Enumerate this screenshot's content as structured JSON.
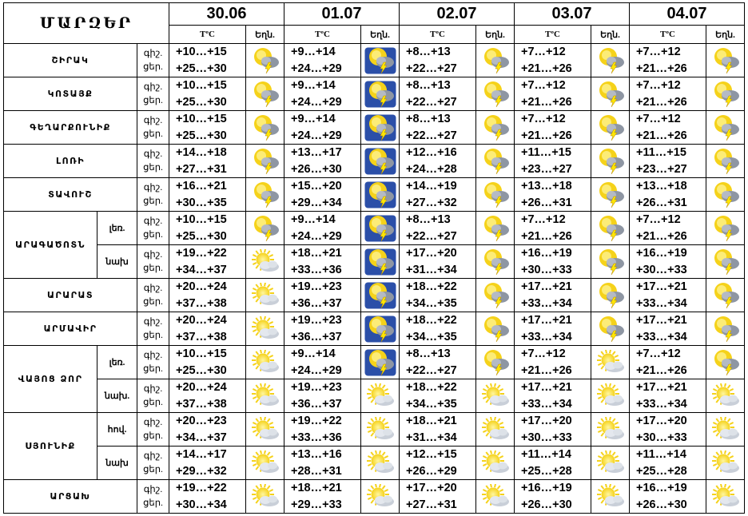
{
  "header": {
    "regions_title": "ՄԱՐԶԵՐ",
    "temp_label": "TºC",
    "weather_label": "Եղն.",
    "dates": [
      "30.06",
      "01.07",
      "02.07",
      "03.07",
      "04.07"
    ]
  },
  "regions": [
    {
      "name": "ՇԻՐԱԿ",
      "rows": [
        {
          "sub": "",
          "day_label": "ցեր.",
          "night_label": "գիշ.",
          "cells": [
            {
              "night": "+10…+15",
              "day": "+25…+30",
              "icon": "storm"
            },
            {
              "night": "+9…+14",
              "day": "+24…+29",
              "icon": "storm-box"
            },
            {
              "night": "+8…+13",
              "day": "+22…+27",
              "icon": "storm"
            },
            {
              "night": "+7…+12",
              "day": "+21…+26",
              "icon": "storm"
            },
            {
              "night": "+7…+12",
              "day": "+21…+26",
              "icon": "storm"
            }
          ]
        }
      ]
    },
    {
      "name": "ԿՈՏԱՅՔ",
      "rows": [
        {
          "sub": "",
          "day_label": "ցեր.",
          "night_label": "գիշ.",
          "cells": [
            {
              "night": "+10…+15",
              "day": "+25…+30",
              "icon": "storm"
            },
            {
              "night": "+9…+14",
              "day": "+24…+29",
              "icon": "storm-box"
            },
            {
              "night": "+8…+13",
              "day": "+22…+27",
              "icon": "storm"
            },
            {
              "night": "+7…+12",
              "day": "+21…+26",
              "icon": "storm"
            },
            {
              "night": "+7…+12",
              "day": "+21…+26",
              "icon": "storm"
            }
          ]
        }
      ]
    },
    {
      "name": "ԳԵՂԱՐՔՈՒՆԻՔ",
      "rows": [
        {
          "sub": "",
          "day_label": "ցեր.",
          "night_label": "գիշ.",
          "cells": [
            {
              "night": "+10…+15",
              "day": "+25…+30",
              "icon": "storm"
            },
            {
              "night": "+9…+14",
              "day": "+24…+29",
              "icon": "storm-box"
            },
            {
              "night": "+8…+13",
              "day": "+22…+27",
              "icon": "storm"
            },
            {
              "night": "+7…+12",
              "day": "+21…+26",
              "icon": "storm"
            },
            {
              "night": "+7…+12",
              "day": "+21…+26",
              "icon": "storm"
            }
          ]
        }
      ]
    },
    {
      "name": "ԼՈՌԻ",
      "rows": [
        {
          "sub": "",
          "day_label": "ցեր.",
          "night_label": "գիշ.",
          "cells": [
            {
              "night": "+14…+18",
              "day": "+27…+31",
              "icon": "storm"
            },
            {
              "night": "+13…+17",
              "day": "+26…+30",
              "icon": "storm-box"
            },
            {
              "night": "+12…+16",
              "day": "+24…+28",
              "icon": "storm"
            },
            {
              "night": "+11…+15",
              "day": "+23…+27",
              "icon": "storm"
            },
            {
              "night": "+11…+15",
              "day": "+23…+27",
              "icon": "storm"
            }
          ]
        }
      ]
    },
    {
      "name": "ՏԱՎՈՒՇ",
      "rows": [
        {
          "sub": "",
          "day_label": "ցեր.",
          "night_label": "գիշ.",
          "cells": [
            {
              "night": "+16…+21",
              "day": "+30…+35",
              "icon": "storm"
            },
            {
              "night": "+15…+20",
              "day": "+29…+34",
              "icon": "storm-box"
            },
            {
              "night": "+14…+19",
              "day": "+27…+32",
              "icon": "storm"
            },
            {
              "night": "+13…+18",
              "day": "+26…+31",
              "icon": "storm"
            },
            {
              "night": "+13…+18",
              "day": "+26…+31",
              "icon": "storm"
            }
          ]
        }
      ]
    },
    {
      "name": "ԱՐԱԳԱԾՈՏՆ",
      "rows": [
        {
          "sub": "լեռ.",
          "day_label": "ցեր.",
          "night_label": "գիշ.",
          "cells": [
            {
              "night": "+10…+15",
              "day": "+25…+30",
              "icon": "storm"
            },
            {
              "night": "+9…+14",
              "day": "+24…+29",
              "icon": "storm-box"
            },
            {
              "night": "+8…+13",
              "day": "+22…+27",
              "icon": "storm"
            },
            {
              "night": "+7…+12",
              "day": "+21…+26",
              "icon": "storm"
            },
            {
              "night": "+7…+12",
              "day": "+21…+26",
              "icon": "storm"
            }
          ]
        },
        {
          "sub": "նախ",
          "day_label": "ցեր.",
          "night_label": "գիշ.",
          "cells": [
            {
              "night": "+19…+22",
              "day": "+34…+37",
              "icon": "sun-cloud"
            },
            {
              "night": "+18…+21",
              "day": "+33…+36",
              "icon": "storm-box"
            },
            {
              "night": "+17…+20",
              "day": "+31…+34",
              "icon": "storm"
            },
            {
              "night": "+16…+19",
              "day": "+30…+33",
              "icon": "storm"
            },
            {
              "night": "+16…+19",
              "day": "+30…+33",
              "icon": "storm"
            }
          ]
        }
      ]
    },
    {
      "name": "ԱՐԱՐԱՏ",
      "rows": [
        {
          "sub": "",
          "day_label": "ցեր.",
          "night_label": "գիշ.",
          "cells": [
            {
              "night": "+20…+24",
              "day": "+37…+38",
              "icon": "sun-cloud"
            },
            {
              "night": "+19…+23",
              "day": "+36…+37",
              "icon": "storm-box"
            },
            {
              "night": "+18…+22",
              "day": "+34…+35",
              "icon": "storm"
            },
            {
              "night": "+17…+21",
              "day": "+33…+34",
              "icon": "storm"
            },
            {
              "night": "+17…+21",
              "day": "+33…+34",
              "icon": "storm"
            }
          ]
        }
      ]
    },
    {
      "name": "ԱՐՄԱՎԻՐ",
      "rows": [
        {
          "sub": "",
          "day_label": "ցեր.",
          "night_label": "գիշ.",
          "cells": [
            {
              "night": "+20…+24",
              "day": "+37…+38",
              "icon": "sun-cloud"
            },
            {
              "night": "+19…+23",
              "day": "+36…+37",
              "icon": "storm-box"
            },
            {
              "night": "+18…+22",
              "day": "+34…+35",
              "icon": "storm"
            },
            {
              "night": "+17…+21",
              "day": "+33…+34",
              "icon": "storm"
            },
            {
              "night": "+17…+21",
              "day": "+33…+34",
              "icon": "storm"
            }
          ]
        }
      ]
    },
    {
      "name": "ՎԱՅՈՑ ՁՈՐ",
      "rows": [
        {
          "sub": "լեռ.",
          "day_label": "ցեր.",
          "night_label": "գիշ.",
          "cells": [
            {
              "night": "+10…+15",
              "day": "+25…+30",
              "icon": "sun-cloud"
            },
            {
              "night": "+9…+14",
              "day": "+24…+29",
              "icon": "storm-box"
            },
            {
              "night": "+8…+13",
              "day": "+22…+27",
              "icon": "storm"
            },
            {
              "night": "+7…+12",
              "day": "+21…+26",
              "icon": "sun-cloud"
            },
            {
              "night": "+7…+12",
              "day": "+21…+26",
              "icon": "storm"
            }
          ]
        },
        {
          "sub": "նախ.",
          "day_label": "ցեր.",
          "night_label": "գիշ.",
          "cells": [
            {
              "night": "+20…+24",
              "day": "+37…+38",
              "icon": "sun-cloud"
            },
            {
              "night": "+19…+23",
              "day": "+36…+37",
              "icon": "sun-cloud"
            },
            {
              "night": "+18…+22",
              "day": "+34…+35",
              "icon": "sun-cloud"
            },
            {
              "night": "+17…+21",
              "day": "+33…+34",
              "icon": "sun-cloud"
            },
            {
              "night": "+17…+21",
              "day": "+33…+34",
              "icon": "sun-cloud"
            }
          ]
        }
      ]
    },
    {
      "name": "ՍՅՈՒՆԻՔ",
      "rows": [
        {
          "sub": "հով.",
          "day_label": "ցեր.",
          "night_label": "գիշ.",
          "cells": [
            {
              "night": "+20…+23",
              "day": "+34…+37",
              "icon": "sun-cloud"
            },
            {
              "night": "+19…+22",
              "day": "+33…+36",
              "icon": "sun-cloud"
            },
            {
              "night": "+18…+21",
              "day": "+31…+34",
              "icon": "sun-cloud"
            },
            {
              "night": "+17…+20",
              "day": "+30…+33",
              "icon": "sun-cloud"
            },
            {
              "night": "+17…+20",
              "day": "+30…+33",
              "icon": "sun-cloud"
            }
          ]
        },
        {
          "sub": "նախ",
          "day_label": "ցեր.",
          "night_label": "գիշ.",
          "cells": [
            {
              "night": "+14…+17",
              "day": "+29…+32",
              "icon": "sun-cloud"
            },
            {
              "night": "+13…+16",
              "day": "+28…+31",
              "icon": "sun-cloud"
            },
            {
              "night": "+12…+15",
              "day": "+26…+29",
              "icon": "sun-cloud"
            },
            {
              "night": "+11…+14",
              "day": "+25…+28",
              "icon": "sun-cloud"
            },
            {
              "night": "+11…+14",
              "day": "+25…+28",
              "icon": "sun-cloud"
            }
          ]
        }
      ]
    },
    {
      "name": "ԱՐՑԱԽ",
      "rows": [
        {
          "sub": "",
          "day_label": "ցեր.",
          "night_label": "գիշ.",
          "cells": [
            {
              "night": "+19…+22",
              "day": "+30…+34",
              "icon": "sun-cloud"
            },
            {
              "night": "+18…+21",
              "day": "+29…+33",
              "icon": "sun-cloud"
            },
            {
              "night": "+17…+20",
              "day": "+27…+31",
              "icon": "sun-cloud"
            },
            {
              "night": "+16…+19",
              "day": "+26…+30",
              "icon": "sun-cloud"
            },
            {
              "night": "+16…+19",
              "day": "+26…+30",
              "icon": "sun-cloud"
            }
          ]
        }
      ]
    }
  ],
  "colors": {
    "sun": "#f5d21a",
    "sun_center": "#fff6a0",
    "cloud": "#c9cfd8",
    "bolt": "#ffe600",
    "box_bg": "#2b4fa8"
  }
}
